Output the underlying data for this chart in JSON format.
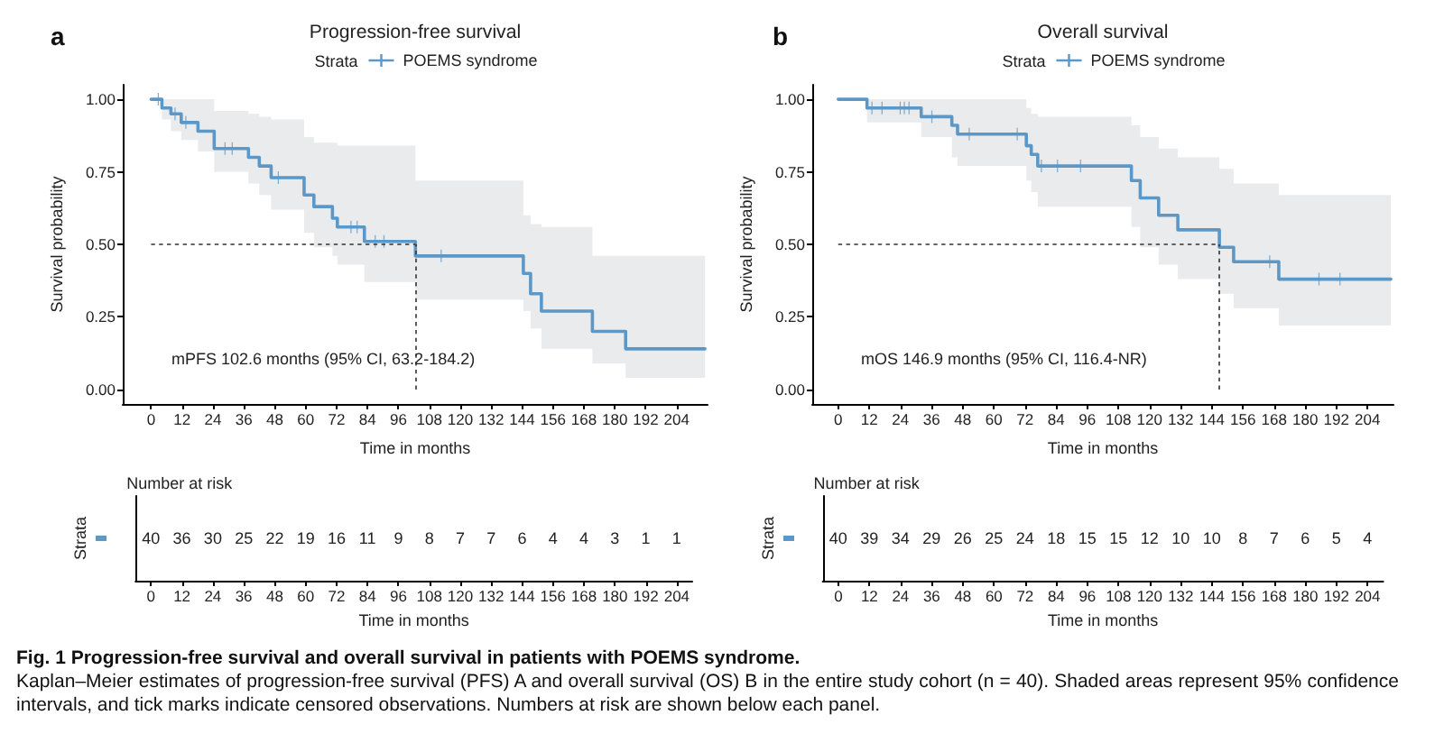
{
  "chart_data": [
    {
      "type": "step",
      "title": "Progression-free survival",
      "xlabel": "Time in months",
      "ylabel": "Survival probability",
      "legend_title": "Strata",
      "legend": "top",
      "annotations": [
        "a",
        "mPFS 102.6 months (95% CI, 63.2-184.2)",
        "Fig. 1 Progression-free survival and overall survival in patients with POEMS syndrome.",
        "Kaplan–Meier estimates of progression-free survival (PFS) A and overall survival (OS) B in the entire study cohort (n = 40). Shaded areas represent 95% confidence intervals, and tick marks indicate censored observations. Numbers at risk are shown below each panel."
      ],
      "xlim": [
        -11,
        216
      ],
      "xticks": [
        0,
        12,
        24,
        36,
        48,
        60,
        72,
        84,
        96,
        108,
        120,
        132,
        144,
        156,
        168,
        180,
        192,
        204
      ],
      "ylim": [
        -0.05,
        1.05
      ],
      "yticks": [
        {
          "value": 0,
          "label": "0.00"
        },
        {
          "value": 0.25,
          "label": "0.25"
        },
        {
          "value": 0.5,
          "label": "0.50"
        },
        {
          "value": 0.75,
          "label": "0.75"
        },
        {
          "value": 1,
          "label": "1.00"
        }
      ],
      "ref_lines": [
        {
          "axis": "y",
          "value": 0.5,
          "line_style": "dashed",
          "color": "#333333"
        },
        {
          "axis": "x",
          "value": 102.6,
          "line_style": "dashed",
          "color": "#333333"
        }
      ],
      "series": [
        {
          "name": "POEMS syndrome",
          "color": "#5b98c8",
          "x": [
            0,
            4.2,
            7.7,
            11.7,
            18.2,
            24.5,
            37.8,
            42,
            46.6,
            59.4,
            63.2,
            70.4,
            72.3,
            82.8,
            102.6,
            144.5,
            147.3,
            151.5,
            171.3,
            184.2,
            215
          ],
          "values": [
            1,
            0.97,
            0.95,
            0.92,
            0.89,
            0.83,
            0.8,
            0.77,
            0.73,
            0.67,
            0.63,
            0.59,
            0.56,
            0.51,
            0.46,
            0.4,
            0.33,
            0.27,
            0.2,
            0.14,
            0.14
          ],
          "lower": [
            1,
            0.93,
            0.89,
            0.86,
            0.82,
            0.75,
            0.71,
            0.67,
            0.62,
            0.54,
            0.49,
            0.46,
            0.43,
            0.37,
            0.31,
            0.27,
            0.21,
            0.14,
            0.09,
            0.04,
            0.04
          ],
          "upper": [
            1,
            1,
            1,
            1,
            1,
            0.96,
            0.95,
            0.94,
            0.93,
            0.87,
            0.85,
            0.85,
            0.84,
            0.84,
            0.72,
            0.6,
            0.57,
            0.56,
            0.46,
            0.46,
            0.46
          ]
        },
        {
          "type": "scatter",
          "marker": "cross",
          "color": "#5b98c8",
          "x": [
            2.8,
            9.3,
            13.5,
            28.7,
            31.5,
            49.4,
            77.6,
            80,
            87,
            90.4,
            112.6
          ],
          "values": [
            1,
            0.95,
            0.92,
            0.83,
            0.83,
            0.73,
            0.56,
            0.56,
            0.51,
            0.51,
            0.46
          ]
        }
      ]
    },
    {
      "type": "heatmap",
      "title": "Number at risk",
      "xlabel": "Time in months",
      "ylabel": "Strata",
      "categories": [
        "0",
        "12",
        "24",
        "36",
        "48",
        "60",
        "72",
        "84",
        "96",
        "108",
        "120",
        "132",
        "144",
        "156",
        "168",
        "180",
        "192",
        "204"
      ],
      "y_categories": [
        null
      ],
      "cells": [
        [
          40,
          36,
          30,
          25,
          22,
          19,
          16,
          11,
          9,
          8,
          7,
          7,
          6,
          4,
          4,
          3,
          1,
          1
        ]
      ],
      "data_labels": true
    },
    {
      "type": "step",
      "title": "Overall survival",
      "xlabel": "Time in months",
      "ylabel": "Survival probability",
      "legend_title": "Strata",
      "legend": "top",
      "annotations": [
        "b",
        "mOS 146.9 months (95% CI, 116.4-NR)"
      ],
      "xlim": [
        -10,
        214
      ],
      "xticks": [
        0,
        12,
        24,
        36,
        48,
        60,
        72,
        84,
        96,
        108,
        120,
        132,
        144,
        156,
        168,
        180,
        192,
        204
      ],
      "ylim": [
        -0.05,
        1.05
      ],
      "yticks": [
        {
          "value": 0,
          "label": "0.00"
        },
        {
          "value": 0.25,
          "label": "0.25"
        },
        {
          "value": 0.5,
          "label": "0.50"
        },
        {
          "value": 0.75,
          "label": "0.75"
        },
        {
          "value": 1,
          "label": "1.00"
        }
      ],
      "ref_lines": [
        {
          "axis": "y",
          "value": 0.5,
          "line_style": "dashed",
          "color": "#333333"
        },
        {
          "axis": "x",
          "value": 146.9,
          "line_style": "dashed",
          "color": "#333333"
        }
      ],
      "series": [
        {
          "name": "POEMS syndrome",
          "color": "#5b98c8",
          "x": [
            0,
            11.1,
            32,
            43.8,
            46,
            72.5,
            74.4,
            76.9,
            113,
            116.4,
            123.5,
            130.9,
            146.9,
            152.4,
            169.8,
            213
          ],
          "values": [
            1,
            0.97,
            0.94,
            0.91,
            0.88,
            0.84,
            0.81,
            0.77,
            0.72,
            0.66,
            0.6,
            0.55,
            0.49,
            0.44,
            0.38,
            0.38
          ],
          "lower": [
            1,
            0.92,
            0.87,
            0.8,
            0.77,
            0.72,
            0.68,
            0.63,
            0.56,
            0.49,
            0.43,
            0.38,
            0.33,
            0.28,
            0.22,
            0.22
          ],
          "upper": [
            1,
            1,
            1,
            1,
            1,
            0.97,
            0.95,
            0.94,
            0.91,
            0.87,
            0.83,
            0.8,
            0.76,
            0.71,
            0.67,
            0.67
          ]
        },
        {
          "type": "scatter",
          "marker": "cross",
          "color": "#5b98c8",
          "x": [
            13,
            16.9,
            23.9,
            25.5,
            27.3,
            36.1,
            50.5,
            69,
            78.3,
            84.5,
            93.4,
            166.3,
            185.3,
            193.4
          ],
          "values": [
            0.97,
            0.97,
            0.97,
            0.97,
            0.97,
            0.94,
            0.88,
            0.88,
            0.77,
            0.77,
            0.77,
            0.44,
            0.38,
            0.38
          ]
        }
      ]
    },
    {
      "type": "heatmap",
      "title": "Number at risk",
      "xlabel": "Time in months",
      "ylabel": "Strata",
      "categories": [
        "0",
        "12",
        "24",
        "36",
        "48",
        "60",
        "72",
        "84",
        "96",
        "108",
        "120",
        "132",
        "144",
        "156",
        "168",
        "180",
        "192",
        "204"
      ],
      "y_categories": [
        null
      ],
      "cells": [
        [
          40,
          39,
          34,
          29,
          26,
          25,
          24,
          18,
          15,
          15,
          12,
          10,
          10,
          8,
          7,
          6,
          5,
          4
        ]
      ],
      "data_labels": true
    }
  ]
}
